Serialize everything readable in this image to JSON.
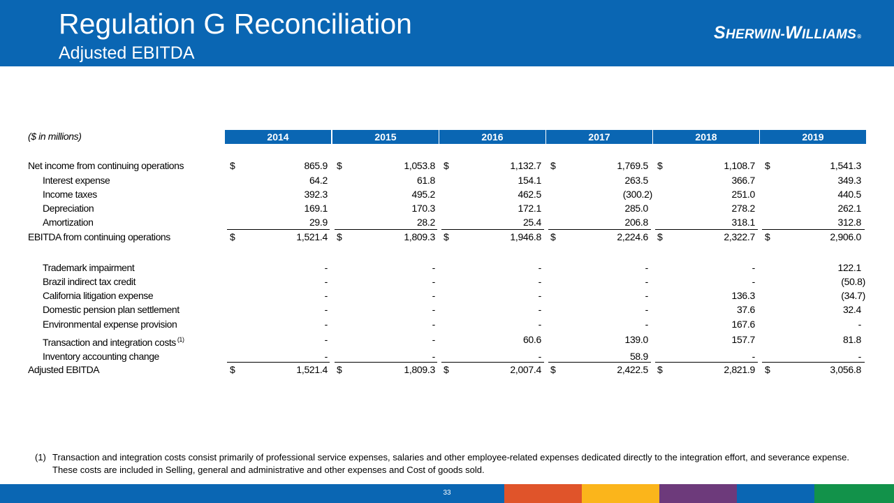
{
  "header": {
    "title": "Regulation G Reconciliation",
    "subtitle": "Adjusted EBITDA",
    "logo_first_big": "S",
    "logo_first_rest": "HERWIN",
    "logo_dash": "-",
    "logo_second_big": "W",
    "logo_second_rest": "ILLIAMS",
    "logo_mark": "®"
  },
  "table": {
    "units_label": "($ in millions)",
    "years": [
      "2014",
      "2015",
      "2016",
      "2017",
      "2018",
      "2019"
    ],
    "rows": [
      {
        "label": "Net income from continuing operations",
        "dollar": "$",
        "values": [
          "865.9",
          "1,053.8",
          "1,132.7",
          "1,769.5",
          "1,108.7",
          "1,541.3"
        ]
      },
      {
        "label": "Interest expense",
        "values": [
          "64.2",
          "61.8",
          "154.1",
          "263.5",
          "366.7",
          "349.3"
        ]
      },
      {
        "label": "Income taxes",
        "values": [
          "392.3",
          "495.2",
          "462.5",
          "(300.2)",
          "251.0",
          "440.5"
        ]
      },
      {
        "label": "Depreciation",
        "values": [
          "169.1",
          "170.3",
          "172.1",
          "285.0",
          "278.2",
          "262.1"
        ]
      },
      {
        "label": "Amortization",
        "values": [
          "29.9",
          "28.2",
          "25.4",
          "206.8",
          "318.1",
          "312.8"
        ]
      },
      {
        "label": "EBITDA from continuing operations",
        "dollar": "$",
        "values": [
          "1,521.4",
          "1,809.3",
          "1,946.8",
          "2,224.6",
          "2,322.7",
          "2,906.0"
        ]
      },
      {
        "label": "Trademark impairment",
        "values": [
          "-",
          "-",
          "-",
          "-",
          "-",
          "122.1"
        ]
      },
      {
        "label": "Brazil indirect tax credit",
        "values": [
          "-",
          "-",
          "-",
          "-",
          "-",
          "(50.8)"
        ]
      },
      {
        "label": "California litigation expense",
        "values": [
          "-",
          "-",
          "-",
          "-",
          "136.3",
          "(34.7)"
        ]
      },
      {
        "label": "Domestic pension plan settlement",
        "values": [
          "-",
          "-",
          "-",
          "-",
          "37.6",
          "32.4"
        ]
      },
      {
        "label": "Environmental expense provision",
        "values": [
          "-",
          "-",
          "-",
          "-",
          "167.6",
          "-"
        ]
      },
      {
        "label": "Transaction and integration costs",
        "footnote_ref": "(1)",
        "values": [
          "-",
          "-",
          "60.6",
          "139.0",
          "157.7",
          "81.8"
        ]
      },
      {
        "label": "Inventory accounting change",
        "values": [
          "-",
          "-",
          "-",
          "58.9",
          "-",
          "-"
        ]
      },
      {
        "label": "Adjusted EBITDA",
        "dollar": "$",
        "values": [
          "1,521.4",
          "1,809.3",
          "2,007.4",
          "2,422.5",
          "2,821.9",
          "3,056.8"
        ]
      }
    ]
  },
  "footnote": {
    "number": "(1)",
    "text": "Transaction and integration costs consist primarily of professional service expenses, salaries and other employee-related expenses dedicated directly to the integration effort, and severance expense. These costs are included in Selling, general and administrative and other expenses and Cost of goods sold."
  },
  "footer": {
    "page_number": "33",
    "colors": [
      "#0a66b3",
      "#e0542a",
      "#fbb51b",
      "#6d3a7b",
      "#0a66b3",
      "#12924a"
    ]
  }
}
